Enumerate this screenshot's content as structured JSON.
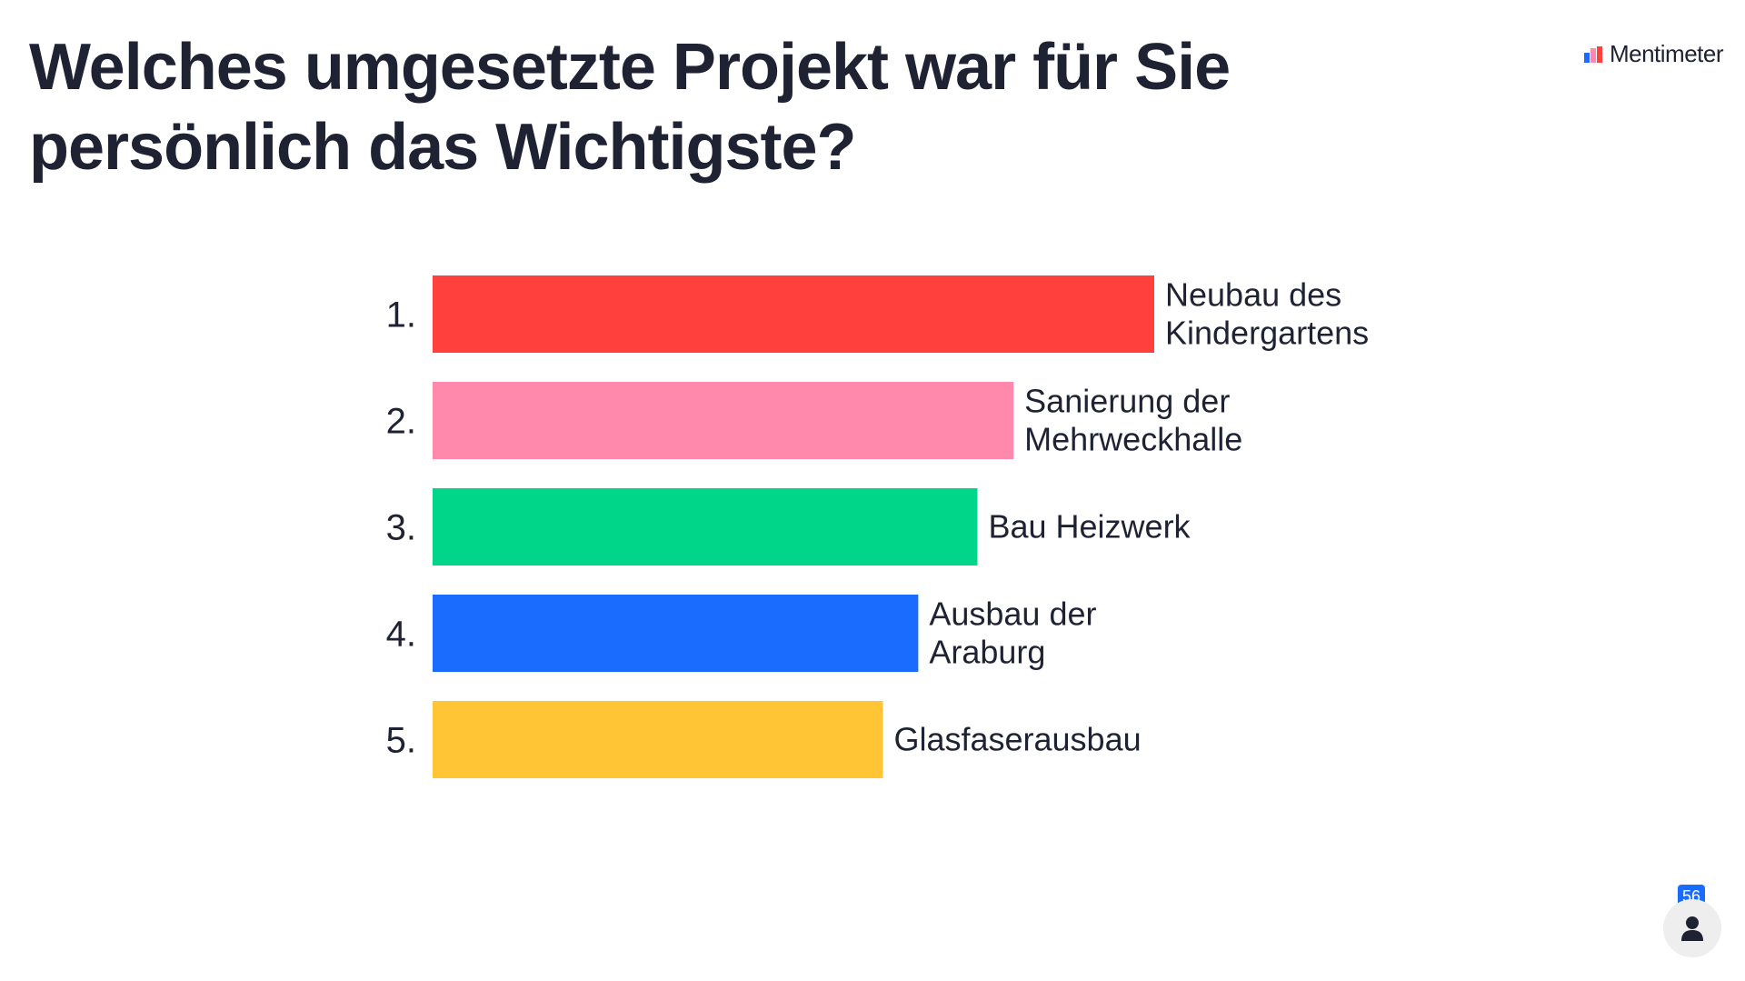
{
  "slide": {
    "title": "Welches umgesetzte Projekt war für Sie persönlich das Wichtigste?"
  },
  "brand": {
    "name": "Mentimeter",
    "logo_icon": "mentimeter-logo-icon"
  },
  "participants": {
    "count": "56",
    "icon": "person-icon"
  },
  "chart_data": {
    "type": "bar",
    "orientation": "horizontal",
    "ranks": [
      "1.",
      "2.",
      "3.",
      "4.",
      "5."
    ],
    "categories": [
      "Neubau des Kindergartens",
      "Sanierung der Mehrweckhalle",
      "Bau Heizwerk",
      "Ausbau der Araburg",
      "Glasfaserausbau"
    ],
    "label_lines": [
      [
        "Neubau des",
        "Kindergartens"
      ],
      [
        "Sanierung der",
        "Mehrweckhalle"
      ],
      [
        "Bau Heizwerk"
      ],
      [
        "Ausbau der",
        "Araburg"
      ],
      [
        "Glasfaserausbau"
      ]
    ],
    "values": [
      100,
      80.5,
      75.5,
      67.3,
      62.4
    ],
    "colors": [
      "#ff403d",
      "#ff88ad",
      "#00d68a",
      "#196cff",
      "#ffc535"
    ],
    "xlim": [
      0,
      100
    ],
    "grid": false,
    "legend": "none"
  }
}
